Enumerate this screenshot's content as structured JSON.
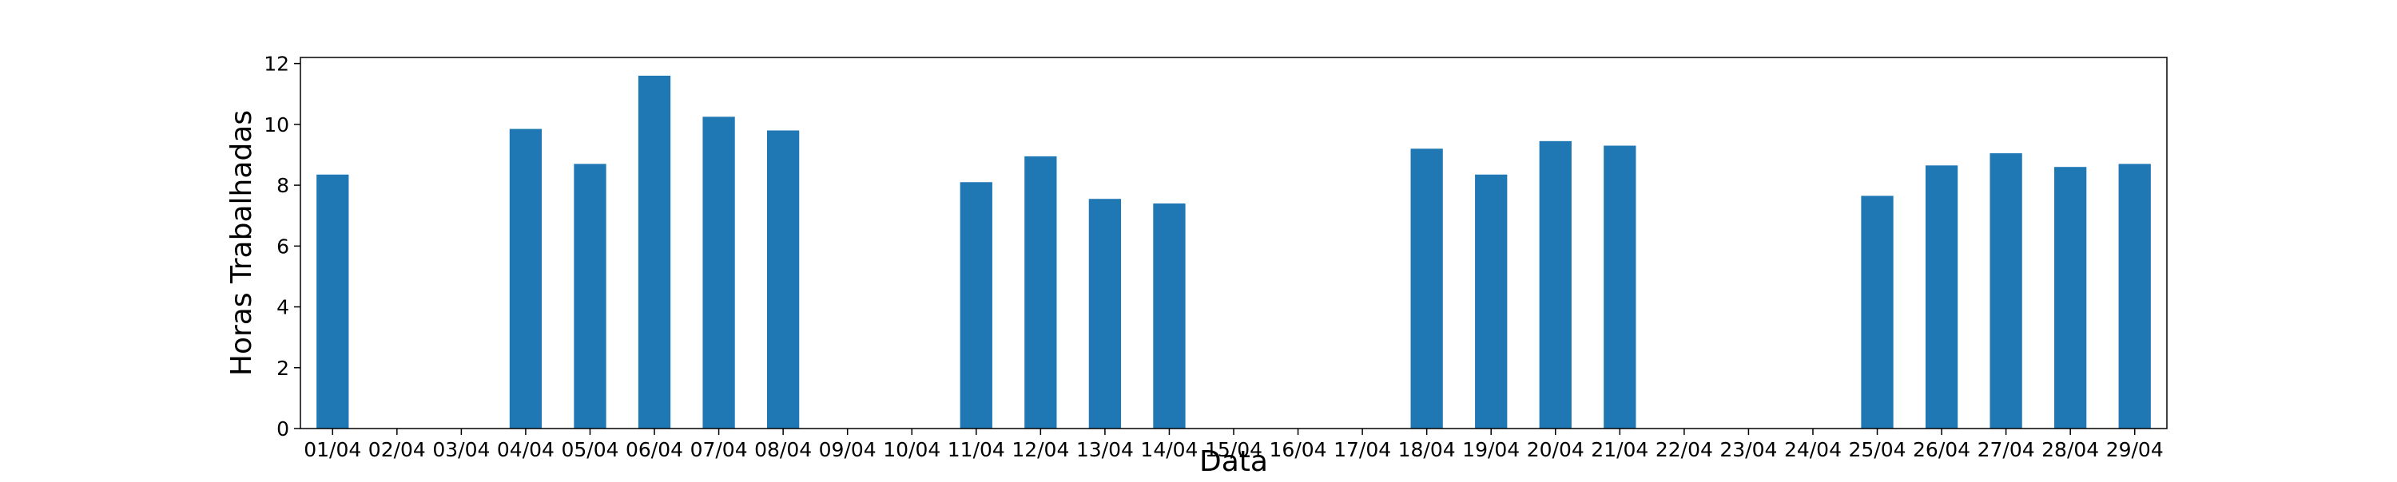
{
  "chart_data": {
    "type": "bar",
    "title": "",
    "xlabel": "Data",
    "ylabel": "Horas Trabalhadas",
    "categories": [
      "01/04",
      "02/04",
      "03/04",
      "04/04",
      "05/04",
      "06/04",
      "07/04",
      "08/04",
      "09/04",
      "10/04",
      "11/04",
      "12/04",
      "13/04",
      "14/04",
      "15/04",
      "16/04",
      "17/04",
      "18/04",
      "19/04",
      "20/04",
      "21/04",
      "22/04",
      "23/04",
      "24/04",
      "25/04",
      "26/04",
      "27/04",
      "28/04",
      "29/04"
    ],
    "values": [
      8.35,
      0,
      0,
      9.85,
      8.7,
      11.6,
      10.25,
      9.8,
      0,
      0,
      8.1,
      8.95,
      7.55,
      7.4,
      0,
      0,
      0,
      9.2,
      8.35,
      9.45,
      9.3,
      0,
      0,
      0,
      7.65,
      8.65,
      9.05,
      8.6,
      8.7
    ],
    "ylim": [
      0,
      12.2
    ],
    "yticks": [
      0,
      2,
      4,
      6,
      8,
      10,
      12
    ],
    "bar_color": "#1f77b4",
    "grid": false,
    "legend": "none"
  }
}
